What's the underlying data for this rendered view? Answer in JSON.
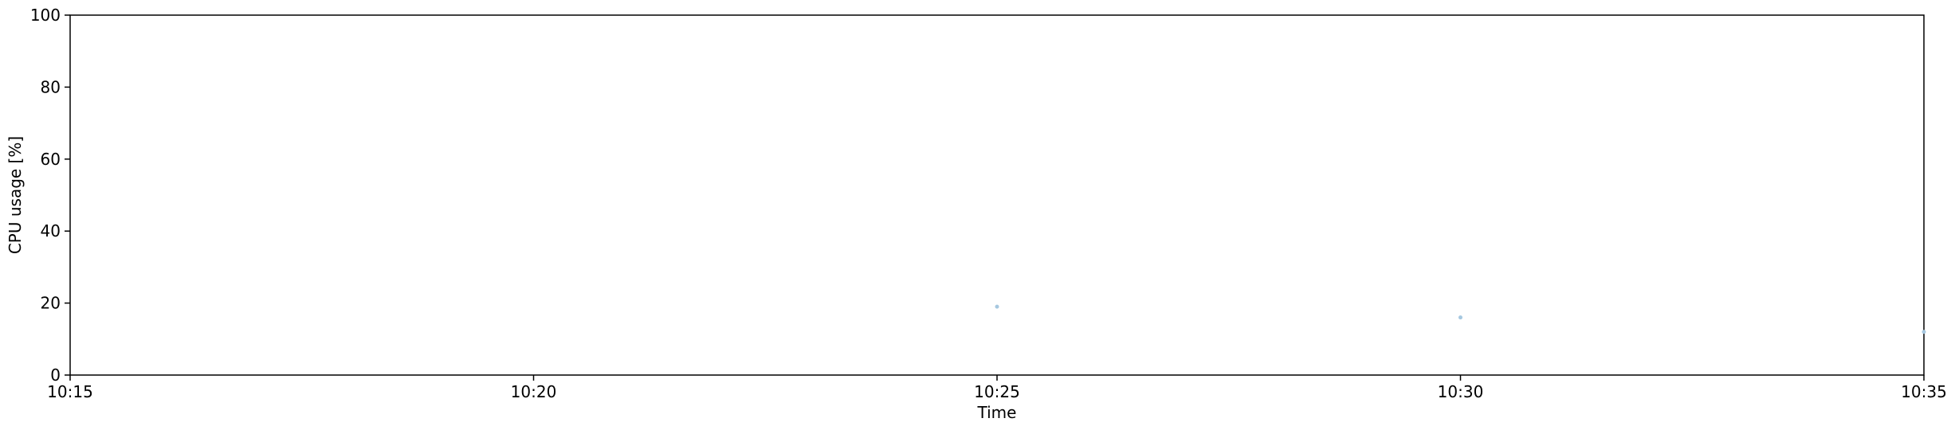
{
  "chart_data": {
    "type": "scatter",
    "title": "",
    "xlabel": "Time",
    "ylabel": "CPU usage [%]",
    "x_ticks": [
      "10:15",
      "10:20",
      "10:25",
      "10:30",
      "10:35"
    ],
    "x_tick_minutes": [
      15,
      20,
      25,
      30,
      35
    ],
    "xlim_minutes": [
      15,
      35
    ],
    "y_ticks": [
      0,
      20,
      40,
      60,
      80,
      100
    ],
    "ylim": [
      0,
      100
    ],
    "grid": false,
    "series": [
      {
        "x": [
          "10:25",
          "10:30",
          "10:35"
        ],
        "x_minutes": [
          25,
          30,
          35
        ],
        "y": [
          19,
          16,
          12
        ],
        "color": "#a6c8e0"
      }
    ]
  }
}
